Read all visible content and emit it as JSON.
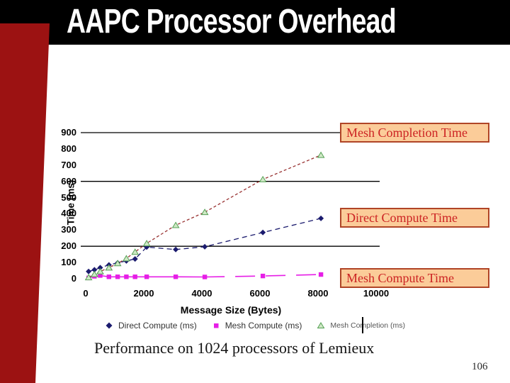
{
  "slide": {
    "title": "AAPC Processor Overhead",
    "caption": "Performance on 1024 processors of Lemieux",
    "page_number": "106"
  },
  "colors": {
    "title_bar": "#000000",
    "accent_red": "#9c1212",
    "callout_bg": "#fbcc99",
    "callout_border": "#b04527",
    "callout_text": "#cc2323",
    "gridline": "#000000"
  },
  "callouts": [
    {
      "label": "Mesh Completion Time"
    },
    {
      "label": "Direct Compute Time"
    },
    {
      "label": "Mesh Compute Time"
    }
  ],
  "chart_data": {
    "type": "line",
    "title": "",
    "xlabel": "Message Size (Bytes)",
    "ylabel": "Time (ms)",
    "xlim": [
      0,
      10000
    ],
    "ylim": [
      0,
      900
    ],
    "x_ticks": [
      0,
      2000,
      4000,
      6000,
      8000,
      10000
    ],
    "y_ticks": [
      900,
      800,
      700,
      600,
      500,
      400,
      300,
      200,
      100,
      0
    ],
    "gridline_values": [
      900,
      600,
      200
    ],
    "grid": "partial-horizontal",
    "legend_position": "bottom",
    "x": [
      100,
      300,
      500,
      800,
      1100,
      1400,
      1700,
      2100,
      3100,
      4100,
      6100,
      8100
    ],
    "series": [
      {
        "name": "Direct Compute (ms)",
        "marker": "diamond",
        "color": "#1b1b6e",
        "line_style": "dashed",
        "values": [
          45,
          55,
          68,
          85,
          98,
          110,
          122,
          195,
          180,
          197,
          285,
          372
        ]
      },
      {
        "name": "Mesh Compute (ms)",
        "marker": "square",
        "color": "#e61ee6",
        "line_style": "solid-gapped",
        "values": [
          5,
          15,
          20,
          12,
          12,
          12,
          12,
          12,
          12,
          11,
          17,
          26
        ]
      },
      {
        "name": "Mesh Completion (ms)",
        "marker": "triangle",
        "color": "#993333",
        "marker_fill": "#cfe8c5",
        "marker_stroke": "#55a055",
        "line_style": "dotted",
        "values": [
          8,
          28,
          45,
          68,
          95,
          125,
          165,
          218,
          330,
          410,
          612,
          762
        ]
      }
    ]
  }
}
